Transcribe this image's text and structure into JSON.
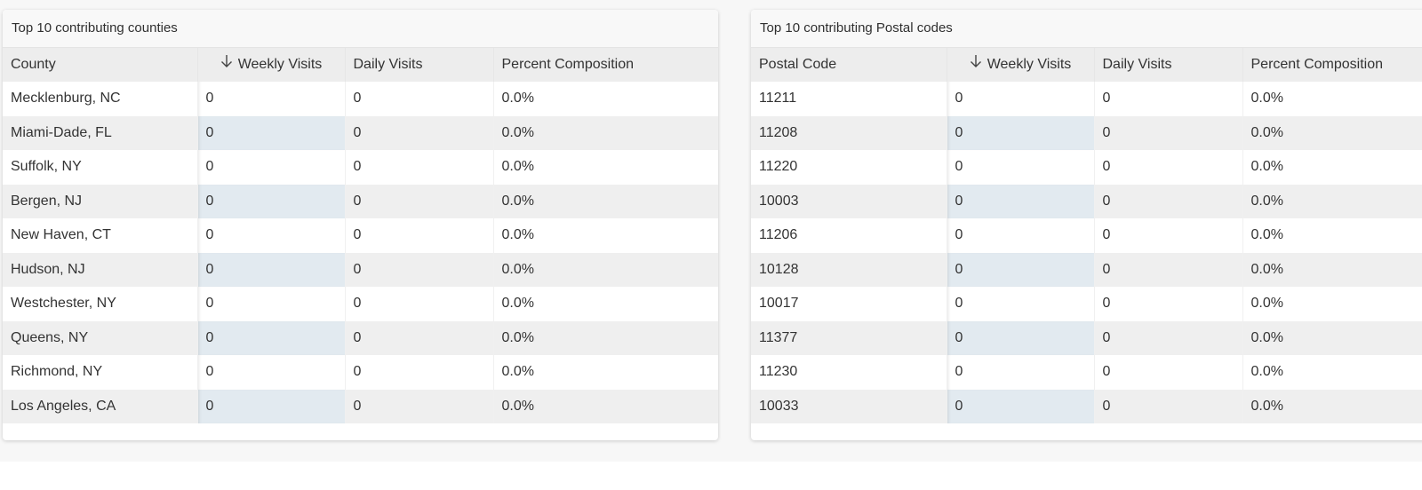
{
  "counties_panel": {
    "title": "Top 10 contributing counties",
    "columns": {
      "name": "County",
      "weekly": "Weekly Visits",
      "daily": "Daily Visits",
      "percent": "Percent Composition"
    },
    "sort_icon": "arrow-down-icon",
    "rows": [
      {
        "name": "Mecklenburg, NC",
        "weekly": "0",
        "daily": "0",
        "percent": "0.0%"
      },
      {
        "name": "Miami-Dade, FL",
        "weekly": "0",
        "daily": "0",
        "percent": "0.0%"
      },
      {
        "name": "Suffolk, NY",
        "weekly": "0",
        "daily": "0",
        "percent": "0.0%"
      },
      {
        "name": "Bergen, NJ",
        "weekly": "0",
        "daily": "0",
        "percent": "0.0%"
      },
      {
        "name": "New Haven, CT",
        "weekly": "0",
        "daily": "0",
        "percent": "0.0%"
      },
      {
        "name": "Hudson, NJ",
        "weekly": "0",
        "daily": "0",
        "percent": "0.0%"
      },
      {
        "name": "Westchester, NY",
        "weekly": "0",
        "daily": "0",
        "percent": "0.0%"
      },
      {
        "name": "Queens, NY",
        "weekly": "0",
        "daily": "0",
        "percent": "0.0%"
      },
      {
        "name": "Richmond, NY",
        "weekly": "0",
        "daily": "0",
        "percent": "0.0%"
      },
      {
        "name": "Los Angeles, CA",
        "weekly": "0",
        "daily": "0",
        "percent": "0.0%"
      }
    ]
  },
  "postal_panel": {
    "title": "Top 10 contributing Postal codes",
    "columns": {
      "name": "Postal Code",
      "weekly": "Weekly Visits",
      "daily": "Daily Visits",
      "percent": "Percent Composition"
    },
    "sort_icon": "arrow-down-icon",
    "rows": [
      {
        "name": "11211",
        "weekly": "0",
        "daily": "0",
        "percent": "0.0%"
      },
      {
        "name": "11208",
        "weekly": "0",
        "daily": "0",
        "percent": "0.0%"
      },
      {
        "name": "11220",
        "weekly": "0",
        "daily": "0",
        "percent": "0.0%"
      },
      {
        "name": "10003",
        "weekly": "0",
        "daily": "0",
        "percent": "0.0%"
      },
      {
        "name": "11206",
        "weekly": "0",
        "daily": "0",
        "percent": "0.0%"
      },
      {
        "name": "10128",
        "weekly": "0",
        "daily": "0",
        "percent": "0.0%"
      },
      {
        "name": "10017",
        "weekly": "0",
        "daily": "0",
        "percent": "0.0%"
      },
      {
        "name": "11377",
        "weekly": "0",
        "daily": "0",
        "percent": "0.0%"
      },
      {
        "name": "11230",
        "weekly": "0",
        "daily": "0",
        "percent": "0.0%"
      },
      {
        "name": "10033",
        "weekly": "0",
        "daily": "0",
        "percent": "0.0%"
      }
    ]
  },
  "colors": {
    "header_bg": "#ededed",
    "row_alt_bg": "#efefef",
    "sorted_col_alt_bg": "#e2eaf0"
  }
}
